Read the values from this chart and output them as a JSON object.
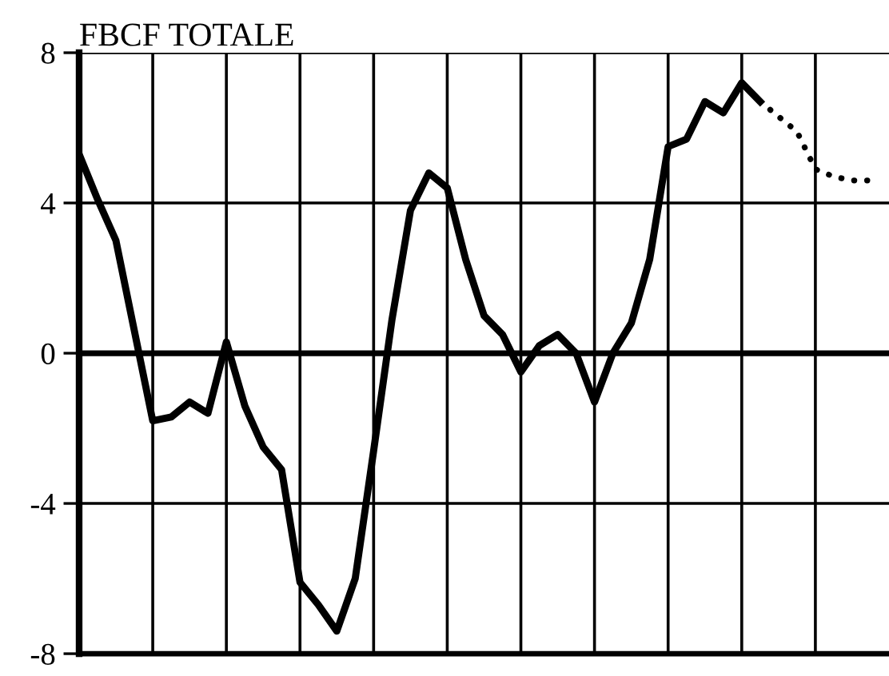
{
  "chart_data": {
    "type": "line",
    "title": "FBCF TOTALE",
    "categories": [
      null,
      null,
      null,
      null,
      null,
      null,
      null,
      null,
      null,
      null,
      null,
      null,
      null,
      null,
      null,
      null,
      null,
      null,
      null,
      null,
      null,
      null,
      null,
      null,
      null,
      null,
      null,
      null,
      null,
      null,
      null,
      null,
      null,
      null,
      null,
      null,
      null,
      null,
      null,
      null,
      null,
      null,
      null,
      null
    ],
    "series": [
      {
        "color": "#000000",
        "line_style": "solid",
        "values": [
          5.3,
          4.1,
          3.0,
          0.6,
          -1.8,
          -1.7,
          -1.3,
          -1.6,
          0.3,
          -1.4,
          -2.5,
          -3.1,
          -6.1,
          -6.7,
          -7.4,
          -6.0,
          -2.6,
          0.9,
          3.8,
          4.8,
          4.4,
          2.5,
          1.0,
          0.5,
          -0.5,
          0.2,
          0.5,
          0.0,
          -1.3,
          0.0,
          0.8,
          2.5,
          5.5,
          5.7,
          6.7,
          6.4,
          7.2,
          6.7,
          null,
          null,
          null,
          null,
          null,
          null
        ]
      },
      {
        "color": "#000000",
        "line_style": "dotted",
        "values": [
          null,
          null,
          null,
          null,
          null,
          null,
          null,
          null,
          null,
          null,
          null,
          null,
          null,
          null,
          null,
          null,
          null,
          null,
          null,
          null,
          null,
          null,
          null,
          null,
          null,
          null,
          null,
          null,
          null,
          null,
          null,
          null,
          null,
          null,
          null,
          null,
          null,
          6.7,
          6.3,
          5.9,
          4.9,
          4.7,
          4.6,
          4.6
        ]
      }
    ],
    "ylim": [
      -8,
      8
    ],
    "yticks": [
      -8,
      -4,
      0,
      4,
      8
    ],
    "ref_lines": [
      {
        "axis": "y",
        "value": 0
      }
    ],
    "grid": true,
    "marker": "none"
  }
}
